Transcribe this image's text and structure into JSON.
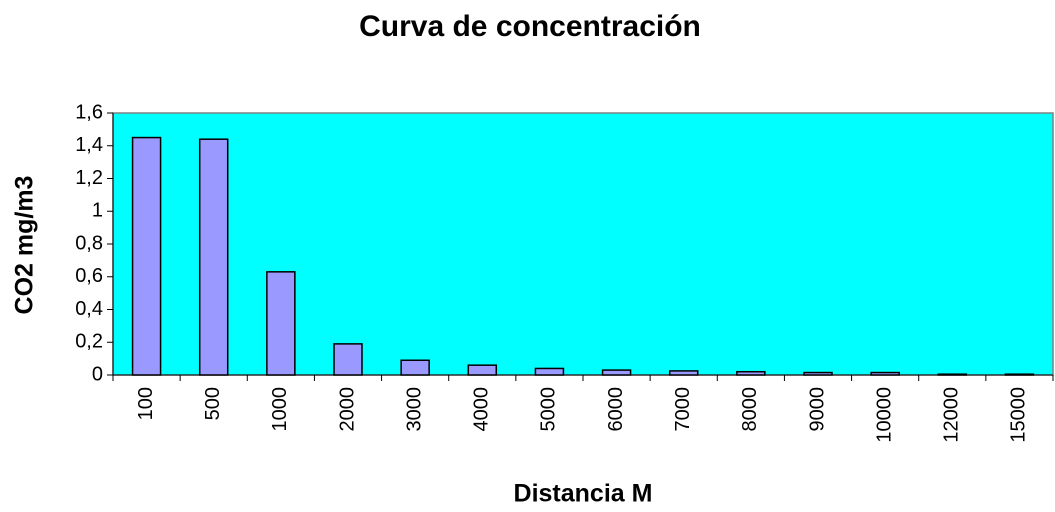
{
  "chart_data": {
    "type": "bar",
    "title": "Curva de concentración",
    "x_label": "Distancia   M",
    "y_label": "CO2 mg/m3",
    "categories": [
      "100",
      "500",
      "1000",
      "2000",
      "3000",
      "4000",
      "5000",
      "6000",
      "7000",
      "8000",
      "9000",
      "10000",
      "12000",
      "15000"
    ],
    "values": [
      1.45,
      1.44,
      0.63,
      0.19,
      0.09,
      0.06,
      0.04,
      0.03,
      0.025,
      0.02,
      0.015,
      0.015,
      0.005,
      0.005
    ],
    "color": "#9999ff",
    "plot_background": "#00ffff",
    "ylim": [
      0,
      1.6
    ],
    "yticks": [
      0,
      {
        "value": 0.2,
        "label": "0,2"
      },
      {
        "value": 0.4,
        "label": "0,4"
      },
      {
        "value": 0.6,
        "label": "0,6"
      },
      {
        "value": 0.8,
        "label": "0,8"
      },
      1,
      {
        "value": 1.2,
        "label": "1,2"
      },
      {
        "value": 1.4,
        "label": "1,4"
      },
      {
        "value": 1.6,
        "label": "1,6"
      }
    ],
    "grid": false
  }
}
